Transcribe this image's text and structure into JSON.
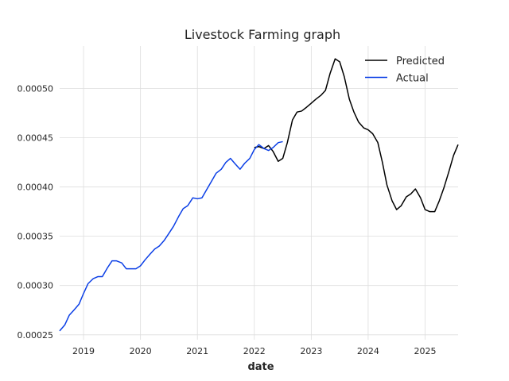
{
  "chart_data": {
    "type": "line",
    "title": "Livestock Farming graph",
    "xlabel": "date",
    "ylabel": "",
    "xlim": [
      2018.58,
      2025.58
    ],
    "ylim": [
      0.000245,
      0.000543
    ],
    "xticks": [
      2019,
      2020,
      2021,
      2022,
      2023,
      2024,
      2025
    ],
    "xtick_labels": [
      "2019",
      "2020",
      "2021",
      "2022",
      "2023",
      "2024",
      "2025"
    ],
    "yticks": [
      0.00025,
      0.0003,
      0.00035,
      0.0004,
      0.00045,
      0.0005
    ],
    "ytick_labels": [
      "0.00025",
      "0.00030",
      "0.00035",
      "0.00040",
      "0.00045",
      "0.00050"
    ],
    "grid": true,
    "legend": {
      "placement": "top-right"
    },
    "series": [
      {
        "name": "Predicted",
        "color": "#000000",
        "x": [
          2022.0,
          2022.08,
          2022.17,
          2022.25,
          2022.33,
          2022.42,
          2022.5,
          2022.58,
          2022.67,
          2022.75,
          2022.83,
          2022.92,
          2023.0,
          2023.08,
          2023.17,
          2023.25,
          2023.33,
          2023.42,
          2023.5,
          2023.58,
          2023.67,
          2023.75,
          2023.83,
          2023.92,
          2024.0,
          2024.08,
          2024.17,
          2024.25,
          2024.33,
          2024.42,
          2024.5,
          2024.58,
          2024.67,
          2024.75,
          2024.83,
          2024.92,
          2025.0,
          2025.08,
          2025.17,
          2025.25,
          2025.33,
          2025.42,
          2025.5,
          2025.58
        ],
        "y": [
          0.00044,
          0.000441,
          0.000439,
          0.000442,
          0.000436,
          0.000426,
          0.000429,
          0.000445,
          0.000468,
          0.000476,
          0.000477,
          0.000481,
          0.000485,
          0.000489,
          0.000493,
          0.000498,
          0.000515,
          0.00053,
          0.000527,
          0.000512,
          0.000489,
          0.000476,
          0.000466,
          0.00046,
          0.000458,
          0.000454,
          0.000445,
          0.000425,
          0.000402,
          0.000386,
          0.000377,
          0.000381,
          0.00039,
          0.000393,
          0.000398,
          0.000389,
          0.000377,
          0.000375,
          0.000375,
          0.000386,
          0.000399,
          0.000416,
          0.000432,
          0.000443
        ]
      },
      {
        "name": "Actual",
        "color": "#0b3fe6",
        "x": [
          2018.58,
          2018.67,
          2018.75,
          2018.83,
          2018.92,
          2019.0,
          2019.08,
          2019.17,
          2019.25,
          2019.33,
          2019.42,
          2019.5,
          2019.58,
          2019.67,
          2019.75,
          2019.83,
          2019.92,
          2020.0,
          2020.08,
          2020.17,
          2020.25,
          2020.33,
          2020.42,
          2020.5,
          2020.58,
          2020.67,
          2020.75,
          2020.83,
          2020.92,
          2021.0,
          2021.08,
          2021.17,
          2021.25,
          2021.33,
          2021.42,
          2021.5,
          2021.58,
          2021.67,
          2021.75,
          2021.83,
          2021.92,
          2022.0,
          2022.08,
          2022.17,
          2022.25,
          2022.33,
          2022.42,
          2022.5
        ],
        "y": [
          0.000254,
          0.00026,
          0.00027,
          0.000275,
          0.000281,
          0.000292,
          0.000302,
          0.000307,
          0.000309,
          0.000309,
          0.000318,
          0.000325,
          0.000325,
          0.000323,
          0.000317,
          0.000317,
          0.000317,
          0.00032,
          0.000326,
          0.000332,
          0.000337,
          0.00034,
          0.000346,
          0.000353,
          0.00036,
          0.00037,
          0.000378,
          0.000381,
          0.000389,
          0.000388,
          0.000389,
          0.000398,
          0.000406,
          0.000414,
          0.000418,
          0.000425,
          0.000429,
          0.000423,
          0.000418,
          0.000424,
          0.000429,
          0.000438,
          0.000443,
          0.000439,
          0.000437,
          0.00044,
          0.000445,
          0.000446
        ]
      }
    ]
  }
}
